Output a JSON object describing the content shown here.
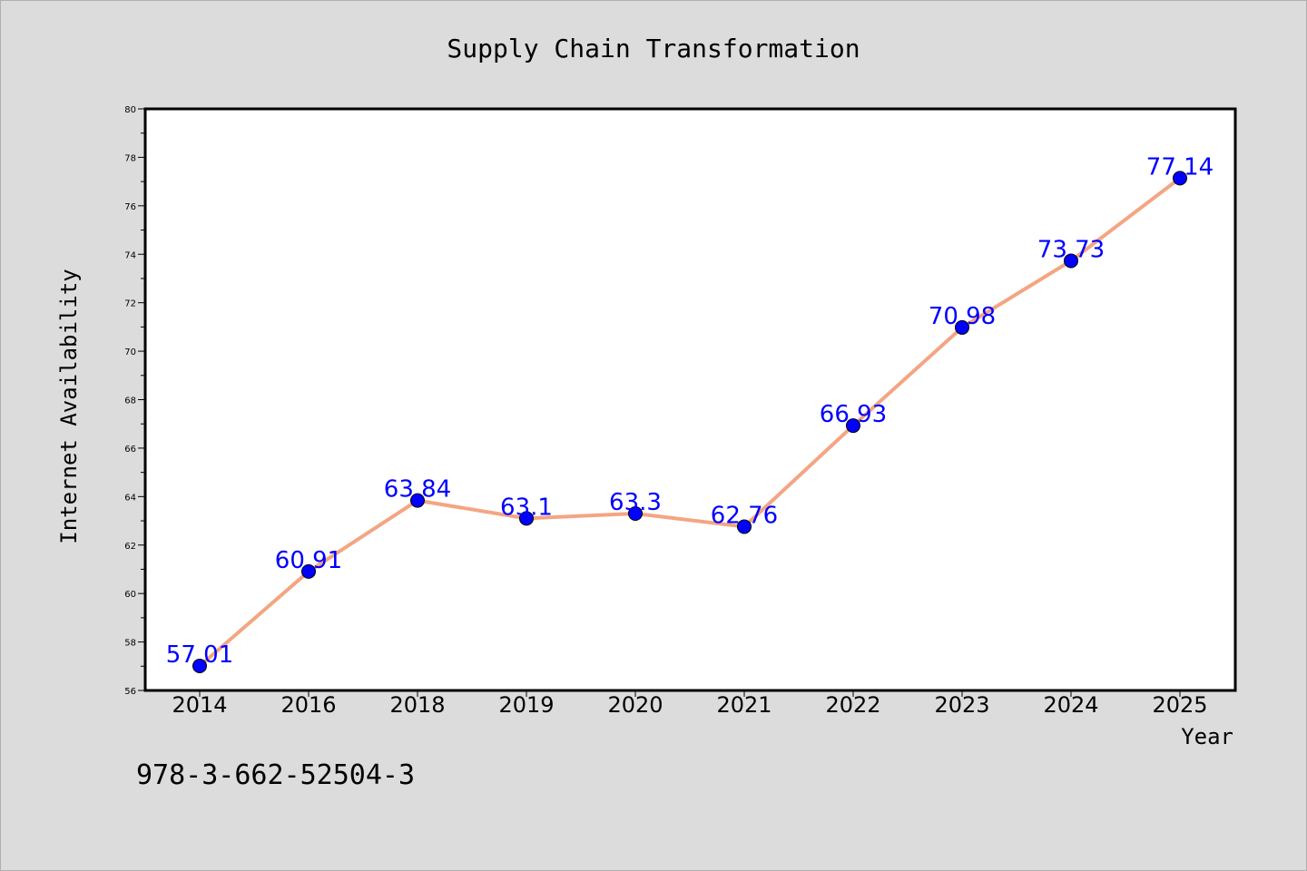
{
  "chart_data": {
    "type": "line",
    "title": "Supply Chain Transformation",
    "xlabel": "Year",
    "ylabel": "Internet Availability",
    "categories": [
      "2014",
      "2016",
      "2018",
      "2019",
      "2020",
      "2021",
      "2022",
      "2023",
      "2024",
      "2025"
    ],
    "series": [
      {
        "values": [
          57.01,
          60.91,
          63.84,
          63.1,
          63.3,
          62.76,
          66.93,
          70.98,
          73.73,
          77.14
        ],
        "labels": [
          "57.01",
          "60.91",
          "63.84",
          "63.1",
          "63.3",
          "62.76",
          "66.93",
          "70.98",
          "73.73",
          "77.14"
        ]
      }
    ],
    "ylim": [
      56,
      80
    ],
    "yticks": [
      "56",
      "58",
      "60",
      "62",
      "64",
      "66",
      "68",
      "70",
      "72",
      "74",
      "76",
      "78",
      "80"
    ],
    "grid": false,
    "legend": "none",
    "colors": {
      "line": "#f4a582",
      "marker": "#0000ff",
      "label": "#0000ff",
      "background": "#dcdcdc",
      "plot_background": "#ffffff"
    }
  },
  "footnote": "978-3-662-52504-3"
}
